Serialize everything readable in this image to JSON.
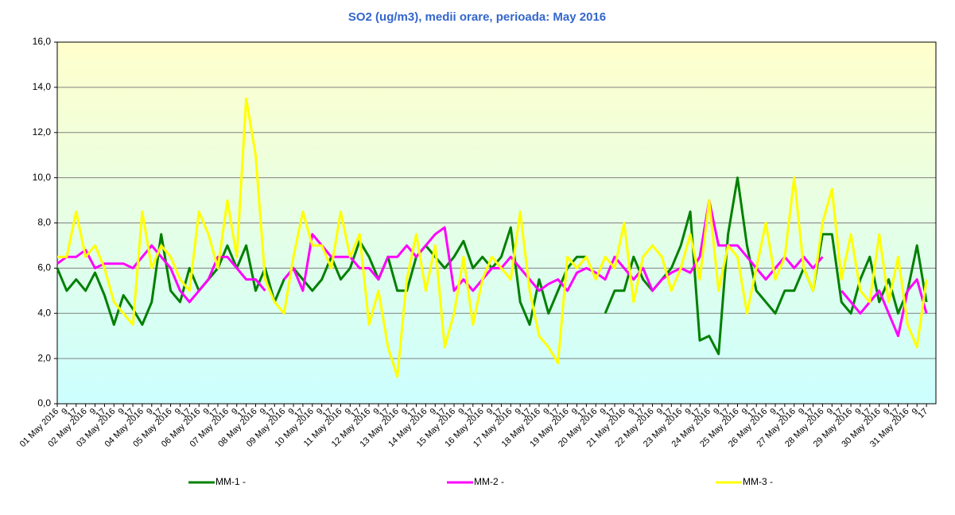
{
  "chart_data": {
    "type": "line",
    "title": "SO2 (ug/m3), medii orare, perioada:  May 2016",
    "categories": [
      "01 May 2016",
      "9",
      "17",
      "02 May 2016",
      "9",
      "17",
      "03 May 2016",
      "9",
      "17",
      "04 May 2016",
      "9",
      "17",
      "05 May 2016",
      "9",
      "17",
      "06 May 2016",
      "9",
      "17",
      "07 May 2016",
      "9",
      "17",
      "08 May 2016",
      "9",
      "17",
      "09 May 2016",
      "9",
      "17",
      "10 May 2016",
      "9",
      "17",
      "11 May 2016",
      "9",
      "17",
      "12 May 2016",
      "9",
      "17",
      "13 May 2016",
      "9",
      "17",
      "14 May 2016",
      "9",
      "17",
      "15 May 2016",
      "9",
      "17",
      "16 May 2016",
      "9",
      "17",
      "17 May 2016",
      "9",
      "17",
      "18 May 2016",
      "9",
      "17",
      "19 May 2016",
      "9",
      "17",
      "20 May 2016",
      "9",
      "17",
      "21 May 2016",
      "9",
      "17",
      "22 May 2016",
      "9",
      "17",
      "23 May 2016",
      "9",
      "17",
      "24 May 2016",
      "9",
      "17",
      "25 May 2016",
      "9",
      "17",
      "26 May 2016",
      "9",
      "17",
      "27 May 2016",
      "9",
      "17",
      "28 May 2016",
      "9",
      "17",
      "29 May 2016",
      "9",
      "17",
      "30 May 2016",
      "9",
      "17",
      "31 May 2016",
      "9",
      "17"
    ],
    "series": [
      {
        "name": "MM-1 -",
        "color": "#008000",
        "values": [
          6.0,
          5.0,
          5.5,
          5.0,
          5.8,
          4.8,
          3.5,
          4.8,
          4.2,
          3.5,
          4.5,
          7.5,
          5.0,
          4.5,
          6.0,
          5.0,
          5.5,
          6.0,
          7.0,
          6.0,
          7.0,
          5.0,
          6.0,
          4.5,
          5.5,
          6.0,
          5.5,
          5.0,
          5.5,
          6.5,
          5.5,
          6.0,
          7.2,
          6.5,
          5.5,
          6.5,
          5.0,
          5.0,
          6.5,
          7.0,
          6.5,
          6.0,
          6.5,
          7.2,
          6.0,
          6.5,
          6.0,
          6.5,
          7.8,
          4.5,
          3.5,
          5.5,
          4.0,
          5.0,
          6.0,
          6.5,
          6.5,
          null,
          4.0,
          5.0,
          5.0,
          6.5,
          5.5,
          5.0,
          5.5,
          6.0,
          7.0,
          8.5,
          2.8,
          3.0,
          2.2,
          7.5,
          10.0,
          7.0,
          5.0,
          4.5,
          4.0,
          5.0,
          5.0,
          6.0,
          5.0,
          7.5,
          7.5,
          4.5,
          4.0,
          5.5,
          6.5,
          4.5,
          5.5,
          4.0,
          5.0,
          7.0,
          4.5
        ]
      },
      {
        "name": "MM-2 -",
        "color": "#ff00ff",
        "values": [
          6.2,
          6.5,
          6.5,
          6.8,
          6.0,
          6.2,
          6.2,
          6.2,
          6.0,
          6.5,
          7.0,
          6.5,
          6.0,
          5.0,
          4.5,
          5.0,
          5.5,
          6.5,
          6.5,
          6.0,
          5.5,
          5.5,
          5.0,
          null,
          5.5,
          6.0,
          5.0,
          7.5,
          7.0,
          6.5,
          6.5,
          6.5,
          6.0,
          6.0,
          5.5,
          6.5,
          6.5,
          7.0,
          6.5,
          7.0,
          7.5,
          7.8,
          5.0,
          5.5,
          5.0,
          5.5,
          6.0,
          6.0,
          6.5,
          6.0,
          5.5,
          5.0,
          5.3,
          5.5,
          5.0,
          5.8,
          6.0,
          5.8,
          5.5,
          6.5,
          6.0,
          5.5,
          6.0,
          5.0,
          5.5,
          5.8,
          6.0,
          5.8,
          6.5,
          9.0,
          7.0,
          7.0,
          7.0,
          6.5,
          6.0,
          5.5,
          6.0,
          6.5,
          6.0,
          6.5,
          6.0,
          6.5,
          null,
          5.0,
          4.5,
          4.0,
          4.5,
          5.0,
          4.0,
          3.0,
          5.0,
          5.5,
          4.0
        ]
      },
      {
        "name": "MM-3 -",
        "color": "#ffff00",
        "values": [
          6.5,
          6.5,
          8.5,
          6.5,
          7.0,
          6.0,
          4.5,
          4.0,
          3.5,
          8.5,
          6.0,
          7.0,
          6.5,
          5.5,
          5.0,
          8.5,
          7.5,
          6.0,
          9.0,
          6.5,
          13.5,
          11.0,
          5.5,
          4.5,
          4.0,
          6.5,
          8.5,
          7.0,
          7.0,
          6.0,
          8.5,
          6.5,
          7.5,
          3.5,
          5.0,
          2.5,
          1.2,
          5.5,
          7.5,
          5.0,
          7.0,
          2.5,
          4.0,
          6.5,
          3.5,
          5.5,
          6.5,
          6.0,
          5.5,
          8.5,
          5.0,
          3.0,
          2.5,
          1.8,
          6.5,
          6.0,
          6.5,
          5.5,
          6.5,
          6.0,
          8.0,
          4.5,
          6.5,
          7.0,
          6.5,
          5.0,
          6.0,
          7.5,
          5.5,
          9.0,
          5.0,
          7.0,
          6.5,
          4.0,
          6.0,
          8.0,
          5.5,
          6.5,
          10.0,
          6.0,
          5.0,
          8.0,
          9.5,
          5.5,
          7.5,
          5.0,
          4.5,
          7.5,
          4.5,
          6.5,
          3.5,
          2.5,
          5.5
        ]
      }
    ],
    "ylim": [
      0,
      16
    ],
    "yticks": [
      {
        "value": 0,
        "label": "0,0"
      },
      {
        "value": 2,
        "label": "2,0"
      },
      {
        "value": 4,
        "label": "4,0"
      },
      {
        "value": 6,
        "label": "6,0"
      },
      {
        "value": 8,
        "label": "8,0"
      },
      {
        "value": 10,
        "label": "10,0"
      },
      {
        "value": 12,
        "label": "12,0"
      },
      {
        "value": 14,
        "label": "14,0"
      },
      {
        "value": 16,
        "label": "16,0"
      }
    ],
    "grid": true,
    "legend": "bottom"
  }
}
